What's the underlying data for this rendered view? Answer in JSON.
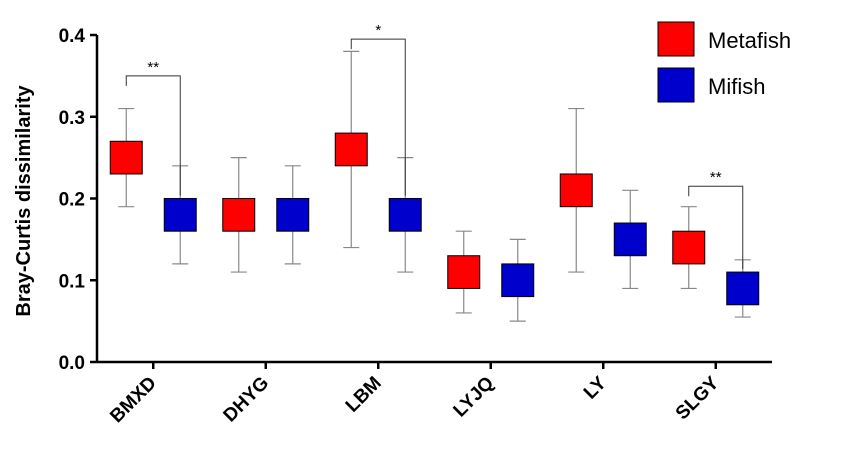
{
  "chart_data": {
    "type": "box",
    "title": "",
    "xlabel": "",
    "ylabel": "Bray-Curtis dissimilarity",
    "ylim": [
      0,
      0.4
    ],
    "yticks": [
      {
        "value": 0.0,
        "label": "0.0"
      },
      {
        "value": 0.1,
        "label": "0.1"
      },
      {
        "value": 0.2,
        "label": "0.2"
      },
      {
        "value": 0.3,
        "label": "0.3"
      },
      {
        "value": 0.4,
        "label": "0.4"
      }
    ],
    "categories": [
      "BMXD",
      "DHYG",
      "LBM",
      "LYJQ",
      "LY",
      "SLGY"
    ],
    "series": [
      {
        "name": "Metafish",
        "color": "#ff0000",
        "boxes": [
          {
            "min": 0.19,
            "q1": 0.23,
            "q3": 0.27,
            "max": 0.31
          },
          {
            "min": 0.11,
            "q1": 0.16,
            "q3": 0.2,
            "max": 0.25
          },
          {
            "min": 0.14,
            "q1": 0.24,
            "q3": 0.28,
            "max": 0.38
          },
          {
            "min": 0.06,
            "q1": 0.09,
            "q3": 0.13,
            "max": 0.16
          },
          {
            "min": 0.11,
            "q1": 0.19,
            "q3": 0.23,
            "max": 0.31
          },
          {
            "min": 0.09,
            "q1": 0.12,
            "q3": 0.16,
            "max": 0.19
          }
        ]
      },
      {
        "name": "Mifish",
        "color": "#0000cc",
        "boxes": [
          {
            "min": 0.12,
            "q1": 0.16,
            "q3": 0.2,
            "max": 0.24
          },
          {
            "min": 0.12,
            "q1": 0.16,
            "q3": 0.2,
            "max": 0.24
          },
          {
            "min": 0.11,
            "q1": 0.16,
            "q3": 0.2,
            "max": 0.25
          },
          {
            "min": 0.05,
            "q1": 0.08,
            "q3": 0.12,
            "max": 0.15
          },
          {
            "min": 0.09,
            "q1": 0.13,
            "q3": 0.17,
            "max": 0.21
          },
          {
            "min": 0.055,
            "q1": 0.07,
            "q3": 0.11,
            "max": 0.125
          }
        ]
      }
    ],
    "annotations": [
      {
        "category": "BMXD",
        "label": "**",
        "y": 0.35
      },
      {
        "category": "LBM",
        "label": "*",
        "y": 0.395
      },
      {
        "category": "SLGY",
        "label": "**",
        "y": 0.215
      }
    ],
    "legend": {
      "position": "top-right"
    },
    "grid": false
  }
}
